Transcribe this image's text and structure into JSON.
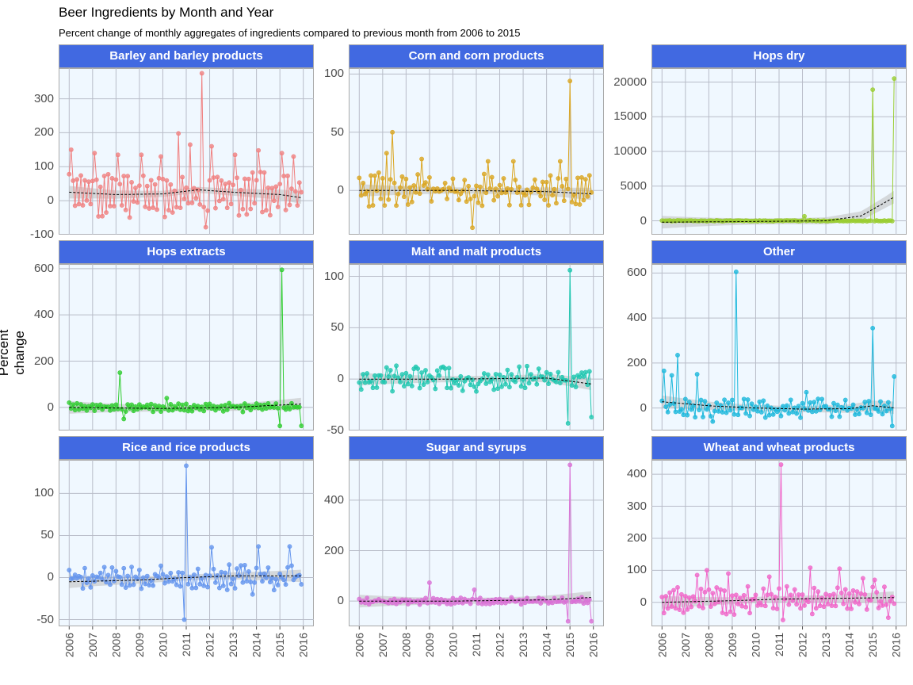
{
  "title": "Beer Ingredients by Month and Year",
  "subtitle": "Percent change of monthly aggregates of ingredients compared to previous month from 2006 to 2015",
  "y_axis_label": "Percent change",
  "x_tick_labels": [
    "2006",
    "2007",
    "2008",
    "2009",
    "2010",
    "2011",
    "2012",
    "2013",
    "2014",
    "2015",
    "2016"
  ],
  "colors": {
    "strip_bg": "#4169E1",
    "panel_bg": "#F0F8FF",
    "grid": "#b8bcc8",
    "smooth_band": "#BEBEBE"
  },
  "chart_data": [
    {
      "type": "line",
      "name": "Barley and barley products",
      "color": "#F08080",
      "xlim": [
        2006,
        2016
      ],
      "ylim": [
        -100,
        390
      ],
      "yticks": [
        -100,
        0,
        100,
        200,
        300
      ],
      "trend": [
        [
          2006.0,
          25
        ],
        [
          2008.0,
          18
        ],
        [
          2010.0,
          20
        ],
        [
          2011.5,
          32
        ],
        [
          2013.0,
          25
        ],
        [
          2015.0,
          18
        ],
        [
          2016.0,
          8
        ]
      ],
      "spikes": [
        [
          2006.08,
          150
        ],
        [
          2007.08,
          140
        ],
        [
          2008.1,
          135
        ],
        [
          2009.1,
          135
        ],
        [
          2009.9,
          130
        ],
        [
          2010.7,
          198
        ],
        [
          2011.2,
          165
        ],
        [
          2011.7,
          375
        ],
        [
          2011.83,
          -78
        ],
        [
          2012.1,
          160
        ],
        [
          2013.1,
          135
        ],
        [
          2014.1,
          148
        ],
        [
          2015.1,
          140
        ],
        [
          2015.6,
          130
        ],
        [
          2015.92,
          25
        ]
      ],
      "series": {
        "base": 20,
        "amp": 55,
        "noise": 18,
        "seed": 11
      }
    },
    {
      "type": "line",
      "name": "Corn and  corn products",
      "color": "#DAA520",
      "xlim": [
        2006,
        2016
      ],
      "ylim": [
        -38,
        105
      ],
      "yticks": [
        0,
        50,
        100
      ],
      "trend": [
        [
          2006.0,
          0
        ],
        [
          2010.0,
          0
        ],
        [
          2014.0,
          -1
        ],
        [
          2016.0,
          -3
        ]
      ],
      "spikes": [
        [
          2007.2,
          32
        ],
        [
          2007.45,
          50
        ],
        [
          2008.7,
          27
        ],
        [
          2010.85,
          -32
        ],
        [
          2011.5,
          25
        ],
        [
          2012.6,
          25
        ],
        [
          2014.55,
          25
        ],
        [
          2015.0,
          94
        ],
        [
          2015.1,
          -10
        ]
      ],
      "series": {
        "base": 0,
        "amp": 8,
        "noise": 8,
        "seed": 23
      }
    },
    {
      "type": "line",
      "name": "Hops dry",
      "color": "#9ACD32",
      "xlim": [
        2006,
        2016
      ],
      "ylim": [
        -2000,
        22000
      ],
      "yticks": [
        0,
        5000,
        10000,
        15000,
        20000
      ],
      "trend": [
        [
          2006.0,
          -200
        ],
        [
          2010.0,
          -100
        ],
        [
          2013.0,
          0
        ],
        [
          2014.5,
          700
        ],
        [
          2015.5,
          2600
        ],
        [
          2016.0,
          3600
        ]
      ],
      "spikes": [
        [
          2012.1,
          650
        ],
        [
          2015.0,
          18900
        ],
        [
          2015.92,
          20500
        ]
      ],
      "series": {
        "base": 0,
        "amp": 20,
        "noise": 60,
        "seed": 37
      }
    },
    {
      "type": "line",
      "name": "Hops extracts",
      "color": "#32CD32",
      "xlim": [
        2006,
        2016
      ],
      "ylim": [
        -100,
        620
      ],
      "yticks": [
        0,
        200,
        400,
        600
      ],
      "trend": [
        [
          2006.0,
          0
        ],
        [
          2010.0,
          -5
        ],
        [
          2013.0,
          0
        ],
        [
          2015.0,
          10
        ],
        [
          2016.0,
          15
        ]
      ],
      "spikes": [
        [
          2008.2,
          150
        ],
        [
          2008.3,
          -50
        ],
        [
          2010.2,
          40
        ],
        [
          2015.0,
          -80
        ],
        [
          2015.1,
          595
        ],
        [
          2015.92,
          -80
        ]
      ],
      "series": {
        "base": 0,
        "amp": 12,
        "noise": 10,
        "seed": 41
      }
    },
    {
      "type": "line",
      "name": "Malt and malt products",
      "color": "#20C7B0",
      "xlim": [
        2006,
        2016
      ],
      "ylim": [
        -50,
        112
      ],
      "yticks": [
        -50,
        0,
        50,
        100
      ],
      "trend": [
        [
          2006.0,
          0
        ],
        [
          2010.0,
          0
        ],
        [
          2014.0,
          1
        ],
        [
          2016.0,
          -5
        ]
      ],
      "spikes": [
        [
          2007.6,
          13
        ],
        [
          2008.4,
          12
        ],
        [
          2009.6,
          12
        ],
        [
          2011.0,
          -12
        ],
        [
          2014.95,
          -43
        ],
        [
          2015.0,
          106
        ],
        [
          2015.92,
          -37
        ]
      ],
      "series": {
        "base": 0,
        "amp": 6,
        "noise": 7,
        "seed": 53
      }
    },
    {
      "type": "line",
      "name": "Other",
      "color": "#1EB8DC",
      "xlim": [
        2006,
        2016
      ],
      "ylim": [
        -100,
        640
      ],
      "yticks": [
        0,
        200,
        400,
        600
      ],
      "trend": [
        [
          2006.0,
          28
        ],
        [
          2008.0,
          10
        ],
        [
          2010.0,
          0
        ],
        [
          2012.0,
          -5
        ],
        [
          2014.0,
          -3
        ],
        [
          2015.0,
          10
        ],
        [
          2016.0,
          0
        ]
      ],
      "spikes": [
        [
          2006.1,
          165
        ],
        [
          2006.4,
          145
        ],
        [
          2006.7,
          235
        ],
        [
          2007.5,
          150
        ],
        [
          2008.2,
          -60
        ],
        [
          2009.15,
          605
        ],
        [
          2012.2,
          70
        ],
        [
          2014.9,
          -30
        ],
        [
          2015.0,
          355
        ],
        [
          2015.85,
          -80
        ],
        [
          2015.95,
          140
        ]
      ],
      "series": {
        "base": 0,
        "amp": 25,
        "noise": 20,
        "seed": 67
      }
    },
    {
      "type": "line",
      "name": "Rice and rice products",
      "color": "#6495ED",
      "xlim": [
        2006,
        2016
      ],
      "ylim": [
        -58,
        140
      ],
      "yticks": [
        -50,
        0,
        50,
        100
      ],
      "trend": [
        [
          2006.0,
          -5
        ],
        [
          2009.0,
          -3
        ],
        [
          2011.0,
          0
        ],
        [
          2013.0,
          2
        ],
        [
          2016.0,
          2
        ]
      ],
      "spikes": [
        [
          2010.95,
          -50
        ],
        [
          2011.0,
          133
        ],
        [
          2012.1,
          36
        ],
        [
          2014.1,
          37
        ],
        [
          2015.4,
          37
        ],
        [
          2013.8,
          -20
        ],
        [
          2009.9,
          14
        ]
      ],
      "series": {
        "base": 0,
        "amp": 8,
        "noise": 8,
        "seed": 79
      }
    },
    {
      "type": "line",
      "name": "Sugar and syrups",
      "color": "#DA70D6",
      "xlim": [
        2006,
        2016
      ],
      "ylim": [
        -100,
        560
      ],
      "yticks": [
        0,
        200,
        400
      ],
      "trend": [
        [
          2006.0,
          0
        ],
        [
          2010.0,
          0
        ],
        [
          2014.0,
          5
        ],
        [
          2016.0,
          15
        ]
      ],
      "spikes": [
        [
          2009.0,
          73
        ],
        [
          2010.9,
          45
        ],
        [
          2014.95,
          -80
        ],
        [
          2015.0,
          540
        ],
        [
          2015.92,
          -80
        ]
      ],
      "series": {
        "base": 0,
        "amp": 8,
        "noise": 8,
        "seed": 97
      }
    },
    {
      "type": "line",
      "name": "Wheat and wheat products",
      "color": "#F065C8",
      "xlim": [
        2006,
        2016
      ],
      "ylim": [
        -75,
        445
      ],
      "yticks": [
        0,
        100,
        200,
        300,
        400
      ],
      "trend": [
        [
          2006.0,
          0
        ],
        [
          2009.0,
          5
        ],
        [
          2011.0,
          10
        ],
        [
          2013.0,
          12
        ],
        [
          2016.0,
          15
        ]
      ],
      "spikes": [
        [
          2007.5,
          85
        ],
        [
          2007.95,
          100
        ],
        [
          2008.8,
          90
        ],
        [
          2010.6,
          80
        ],
        [
          2011.1,
          430
        ],
        [
          2011.2,
          -55
        ],
        [
          2012.3,
          108
        ],
        [
          2013.6,
          105
        ],
        [
          2014.6,
          75
        ],
        [
          2015.1,
          70
        ],
        [
          2015.7,
          -48
        ]
      ],
      "series": {
        "base": 5,
        "amp": 30,
        "noise": 20,
        "seed": 113
      }
    }
  ]
}
